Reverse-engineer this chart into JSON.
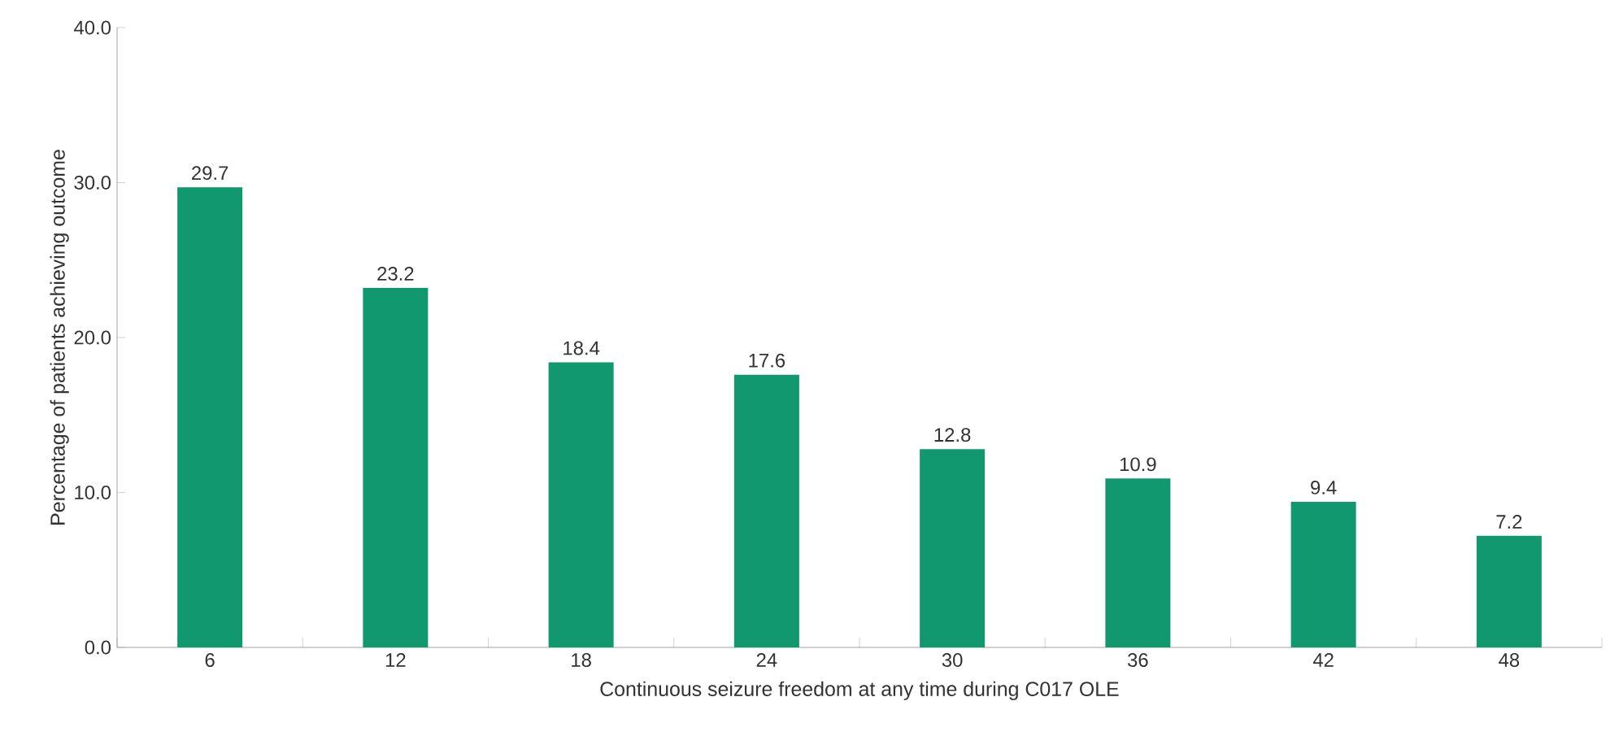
{
  "chart_data": {
    "type": "bar",
    "xlabel": "Continuous seizure freedom at any time during C017 OLE",
    "ylabel": "Percentage of patients achieving outcome",
    "categories": [
      "6",
      "12",
      "18",
      "24",
      "30",
      "36",
      "42",
      "48"
    ],
    "values": [
      29.7,
      23.2,
      18.4,
      17.6,
      12.8,
      10.9,
      9.4,
      7.2
    ],
    "color": "#11986f",
    "ylim": [
      0,
      40
    ],
    "yticks": [
      {
        "value": 0,
        "label": "0.0"
      },
      {
        "value": 10,
        "label": "10.0"
      },
      {
        "value": 20,
        "label": "20.0"
      },
      {
        "value": 30,
        "label": "30.0"
      },
      {
        "value": 40,
        "label": "40.0"
      }
    ],
    "data_labels": true
  }
}
